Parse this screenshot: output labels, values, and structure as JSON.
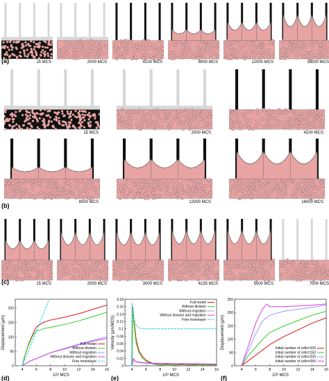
{
  "panels": {
    "a": {
      "label": "(a)",
      "frames": [
        {
          "time": "15 MCS",
          "stage": "initial"
        },
        {
          "time": "2000 MCS",
          "stage": "settled"
        },
        {
          "time": "4100 MCS",
          "stage": "attached"
        },
        {
          "time": "8000 MCS",
          "stage": "arcs-small"
        },
        {
          "time": "12000 MCS",
          "stage": "arcs-mid"
        },
        {
          "time": "16000 MCS",
          "stage": "arcs-large"
        }
      ]
    },
    "b": {
      "label": "(b)",
      "frames": [
        {
          "time": "15 MCS",
          "stage": "initial"
        },
        {
          "time": "2000 MCS",
          "stage": "settled"
        },
        {
          "time": "4100 MCS",
          "stage": "attached"
        },
        {
          "time": "8000 MCS",
          "stage": "arcs-small"
        },
        {
          "time": "12000 MCS",
          "stage": "arcs-mid"
        },
        {
          "time": "16000 MCS",
          "stage": "arcs-large"
        }
      ]
    },
    "c": {
      "label": "(c)",
      "frames": [
        {
          "time": "15 MCS",
          "stage": "arcs-mid"
        },
        {
          "time": "2000 MCS",
          "stage": "arcs-large"
        },
        {
          "time": "3000 MCS",
          "stage": "arcs-large"
        },
        {
          "time": "4155 MCS",
          "stage": "arcs-detach"
        },
        {
          "time": "5500 MCS",
          "stage": "arcs-detach"
        },
        {
          "time": "7000 MCS",
          "stage": "detached"
        }
      ]
    }
  },
  "colors": {
    "cell": "#e8a3a3",
    "cell_edge": "#6d6d6d",
    "pillar_free": "#d7d7d7",
    "pillar_attached": "#111111"
  },
  "chart_data": [
    {
      "type": "line",
      "panel_label": "(d)",
      "xlabel": "10³ MCS",
      "ylabel": "Displacement (µm)",
      "xlim": [
        3,
        16
      ],
      "ylim": [
        0,
        230
      ],
      "xticks": [
        "4",
        "6",
        "8",
        "10",
        "12",
        "14",
        "16"
      ],
      "yticks": [
        "0",
        "50",
        "100",
        "150",
        "200"
      ],
      "legend": "bottom-right",
      "series": [
        {
          "name": "Full model",
          "color": "#e01010",
          "dash": "solid",
          "x": [
            3.5,
            4,
            4.3,
            4.8,
            5.5,
            6,
            7,
            8,
            10,
            12,
            14,
            16
          ],
          "y": [
            0,
            0,
            30,
            70,
            110,
            135,
            150,
            158,
            168,
            180,
            195,
            210
          ]
        },
        {
          "name": "Without division",
          "color": "#2ecc1f",
          "dash": "solid",
          "x": [
            3.5,
            4,
            4.3,
            4.8,
            5.5,
            6,
            7,
            8,
            10,
            12,
            14,
            16
          ],
          "y": [
            0,
            0,
            30,
            68,
            105,
            120,
            128,
            133,
            143,
            155,
            170,
            185
          ]
        },
        {
          "name": "Without migration",
          "color": "#3333ff",
          "dash": "dotted",
          "x": [
            3.5,
            4,
            4.5,
            5,
            6,
            7,
            8,
            10,
            12,
            14,
            16
          ],
          "y": [
            0,
            0,
            8,
            15,
            25,
            35,
            45,
            60,
            75,
            88,
            100
          ]
        },
        {
          "name": "Without division and migration",
          "color": "#d83bd8",
          "dash": "solid",
          "x": [
            3.5,
            4,
            4.5,
            5,
            6,
            7,
            8,
            10,
            12,
            14,
            16
          ],
          "y": [
            0,
            0,
            8,
            15,
            25,
            35,
            45,
            58,
            72,
            85,
            95
          ]
        },
        {
          "name": "Free monolayer",
          "color": "#16c8d8",
          "dash": "dashed",
          "x": [
            3.5,
            4,
            5,
            6,
            7,
            7.8
          ],
          "y": [
            0,
            0,
            60,
            120,
            180,
            230
          ]
        }
      ]
    },
    {
      "type": "line",
      "panel_label": "(e)",
      "xlabel": "10³ MCS",
      "ylabel": "Velocity (µm/MCS)",
      "xlim": [
        3,
        16
      ],
      "ylim": [
        0,
        0.18
      ],
      "xticks": [
        "4",
        "6",
        "8",
        "10",
        "12",
        "14",
        "16"
      ],
      "yticks": [
        "0",
        "0.02",
        "0.04",
        "0.06",
        "0.08",
        "0.1",
        "0.12",
        "0.14",
        "0.16",
        "0.18"
      ],
      "legend": "top-right",
      "series": [
        {
          "name": "Full model",
          "color": "#e01010",
          "dash": "solid",
          "x": [
            3.5,
            4,
            4.1,
            4.3,
            4.6,
            5,
            5.5,
            6,
            6.5,
            7,
            7.5,
            8,
            9,
            10,
            11,
            12,
            13,
            14,
            15,
            16
          ],
          "y": [
            0,
            0,
            0.16,
            0.12,
            0.07,
            0.04,
            0.025,
            0.015,
            0.01,
            0.006,
            0.004,
            0.003,
            0.004,
            0.002,
            0.003,
            0.002,
            0.004,
            0.002,
            0.003,
            0.002
          ]
        },
        {
          "name": "Without division",
          "color": "#2ecc1f",
          "dash": "solid",
          "x": [
            3.5,
            4,
            4.1,
            4.3,
            4.6,
            5,
            5.5,
            6,
            6.5,
            7,
            7.5,
            8,
            9,
            10,
            11,
            12,
            13,
            14,
            15,
            16
          ],
          "y": [
            0,
            0,
            0.155,
            0.11,
            0.06,
            0.035,
            0.02,
            0.012,
            0.008,
            0.005,
            0.003,
            0.002,
            0.003,
            0.002,
            0.004,
            0.002,
            0.002,
            0.003,
            0.002,
            0.002
          ]
        },
        {
          "name": "Without migration",
          "color": "#3333ff",
          "dash": "dotted",
          "x": [
            3.5,
            4,
            4.2,
            4.5,
            5,
            6,
            7,
            8,
            10,
            12,
            14,
            16
          ],
          "y": [
            0,
            0,
            0.02,
            0.012,
            0.01,
            0.008,
            0.007,
            0.007,
            0.006,
            0.006,
            0.005,
            0.005
          ]
        },
        {
          "name": "Without division and migration",
          "color": "#d83bd8",
          "dash": "solid",
          "x": [
            3.5,
            4,
            4.2,
            4.5,
            5,
            6,
            7,
            8,
            10,
            12,
            14,
            16
          ],
          "y": [
            0,
            0,
            0.018,
            0.011,
            0.009,
            0.007,
            0.006,
            0.006,
            0.005,
            0.005,
            0.005,
            0.004
          ]
        },
        {
          "name": "Free monolayer",
          "color": "#16c8d8",
          "dash": "dashed",
          "x": [
            3.5,
            3.95,
            4,
            4.2,
            4.6,
            5,
            6,
            7,
            8,
            10,
            12,
            14,
            16
          ],
          "y": [
            0,
            0,
            0.17,
            0.13,
            0.11,
            0.102,
            0.1,
            0.1,
            0.1,
            0.1,
            0.1,
            0.1,
            0.1
          ]
        }
      ]
    },
    {
      "type": "line",
      "panel_label": "(f)",
      "xlabel": "10³ MCS",
      "ylabel": "Displacement (µm)",
      "xlim": [
        3,
        16
      ],
      "ylim": [
        0,
        250
      ],
      "xticks": [
        "4",
        "6",
        "8",
        "10",
        "12",
        "14",
        "16"
      ],
      "yticks": [
        "0",
        "50",
        "100",
        "150",
        "200",
        "250"
      ],
      "legend": "bottom-right",
      "series": [
        {
          "name": "Initial number of cells=100",
          "color": "#e01010",
          "dash": "solid",
          "x": [
            3.5,
            4,
            5,
            6,
            7,
            8,
            10,
            12,
            14,
            16
          ],
          "y": [
            0,
            0,
            20,
            40,
            60,
            80,
            110,
            135,
            160,
            180
          ]
        },
        {
          "name": "Initial number of cells=150",
          "color": "#2ecc1f",
          "dash": "solid",
          "x": [
            3.5,
            4,
            5,
            6,
            7,
            8,
            10,
            12,
            14,
            16
          ],
          "y": [
            0,
            0,
            40,
            70,
            100,
            125,
            150,
            170,
            190,
            205
          ]
        },
        {
          "name": "Initial number of cells=200",
          "color": "#3333ff",
          "dash": "dotted",
          "x": [
            3.5,
            4,
            5,
            6,
            7,
            8,
            10,
            12,
            14,
            16
          ],
          "y": [
            0,
            0,
            60,
            120,
            170,
            190,
            205,
            212,
            220,
            228
          ]
        },
        {
          "name": "Initial number of cells=250",
          "color": "#d83bd8",
          "dash": "solid",
          "x": [
            3.5,
            4,
            5,
            6,
            7,
            7.6,
            8,
            10,
            12,
            14,
            16
          ],
          "y": [
            0,
            0,
            80,
            160,
            215,
            232,
            222,
            222,
            225,
            228,
            232
          ]
        }
      ]
    }
  ]
}
